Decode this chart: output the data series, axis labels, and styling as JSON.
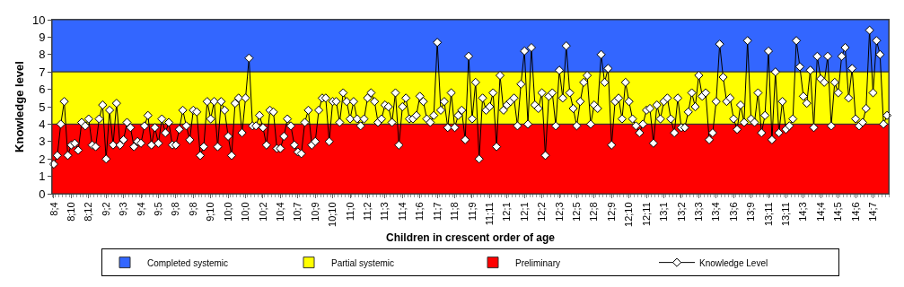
{
  "chart_data": {
    "type": "line",
    "xlabel": "Children in crescent order of age",
    "ylabel": "Knowledge level",
    "categories": [
      "8;4",
      null,
      null,
      null,
      null,
      "8;10",
      null,
      null,
      null,
      null,
      "8;12",
      null,
      null,
      null,
      null,
      "9;2",
      null,
      null,
      null,
      null,
      "9;3",
      null,
      null,
      null,
      null,
      "9;4",
      null,
      null,
      null,
      null,
      "9;5",
      null,
      null,
      null,
      null,
      "9;8",
      null,
      null,
      null,
      null,
      "9;8",
      null,
      null,
      null,
      null,
      "9;10",
      null,
      null,
      null,
      null,
      "10;0",
      null,
      null,
      null,
      null,
      "10;0",
      null,
      null,
      null,
      null,
      "10;2",
      null,
      null,
      null,
      null,
      "10;4",
      null,
      null,
      null,
      null,
      "10;7",
      null,
      null,
      null,
      null,
      "10;9",
      null,
      null,
      null,
      null,
      "10;10",
      null,
      null,
      null,
      null,
      "11;0",
      null,
      null,
      null,
      null,
      "11;2",
      null,
      null,
      null,
      null,
      "11;3",
      null,
      null,
      null,
      null,
      "11;4",
      null,
      null,
      null,
      null,
      "11;6",
      null,
      null,
      null,
      null,
      "11;7",
      null,
      null,
      null,
      null,
      "11;8",
      null,
      null,
      null,
      null,
      "11;9",
      null,
      null,
      null,
      null,
      "11;11",
      null,
      null,
      null,
      null,
      "12;1",
      null,
      null,
      null,
      null,
      "12;1",
      null,
      null,
      null,
      null,
      "12;2",
      null,
      null,
      null,
      null,
      "12;3",
      null,
      null,
      null,
      null,
      "12;5",
      null,
      null,
      null,
      null,
      "12;8",
      null,
      null,
      null,
      null,
      "12;9",
      null,
      null,
      null,
      null,
      "12;10",
      null,
      null,
      null,
      null,
      "12;11",
      null,
      null,
      null,
      null,
      "13;1",
      null,
      null,
      null,
      null,
      "13;2",
      null,
      null,
      null,
      null,
      "13;3",
      null,
      null,
      null,
      null,
      "13;4",
      null,
      null,
      null,
      null,
      "13;6",
      null,
      null,
      null,
      null,
      "13;9",
      null,
      null,
      null,
      null,
      "13;11",
      null,
      null,
      null,
      null,
      "13;11",
      null,
      null,
      null,
      null,
      "14;3",
      null,
      null,
      null,
      null,
      "14;4",
      null,
      null,
      null,
      null,
      "14;5",
      null,
      null,
      null,
      null,
      "14;6",
      null,
      null,
      null,
      null,
      "14;7",
      null,
      null,
      null,
      null
    ],
    "series": [
      {
        "name": "Knowledge Level",
        "color": "#000000",
        "values": [
          1.7,
          2.2,
          4.0,
          5.3,
          2.2,
          2.8,
          2.9,
          2.5,
          4.1,
          3.9,
          4.3,
          2.8,
          2.7,
          4.3,
          5.1,
          2.0,
          4.8,
          2.8,
          5.2,
          2.8,
          3.1,
          4.1,
          3.8,
          2.7,
          3.0,
          2.9,
          3.9,
          4.5,
          2.8,
          3.8,
          2.9,
          4.3,
          3.5,
          4.1,
          2.8,
          2.8,
          3.7,
          4.8,
          3.9,
          3.1,
          4.8,
          4.7,
          2.2,
          2.7,
          5.3,
          4.3,
          5.3,
          2.7,
          5.3,
          4.8,
          3.3,
          2.2,
          5.2,
          5.5,
          3.5,
          5.5,
          7.8,
          3.9,
          3.9,
          4.5,
          3.8,
          2.8,
          4.8,
          4.7,
          2.6,
          2.6,
          3.3,
          4.3,
          3.9,
          2.8,
          2.4,
          2.3,
          4.1,
          4.8,
          2.8,
          3.0,
          4.8,
          5.5,
          5.5,
          3.0,
          5.3,
          5.3,
          4.1,
          5.8,
          5.3,
          4.3,
          5.3,
          4.3,
          3.9,
          4.3,
          5.5,
          5.8,
          5.3,
          4.1,
          4.3,
          5.1,
          5.0,
          4.1,
          5.8,
          2.8,
          5.0,
          5.5,
          4.3,
          4.3,
          4.5,
          5.6,
          5.3,
          4.3,
          4.1,
          4.5,
          8.7,
          4.8,
          5.3,
          3.8,
          5.8,
          3.8,
          4.5,
          4.8,
          3.1,
          7.9,
          4.3,
          6.4,
          2.0,
          5.5,
          4.8,
          5.0,
          5.8,
          2.7,
          6.8,
          4.8,
          5.1,
          5.3,
          5.5,
          3.9,
          6.3,
          8.2,
          4.0,
          8.4,
          5.1,
          4.9,
          5.8,
          2.2,
          5.6,
          5.8,
          3.9,
          7.1,
          5.5,
          8.5,
          5.8,
          4.9,
          3.9,
          5.3,
          6.4,
          6.8,
          4.0,
          5.1,
          4.9,
          8.0,
          6.4,
          7.2,
          2.8,
          5.3,
          5.5,
          4.3,
          6.4,
          5.3,
          4.3,
          3.9,
          3.5,
          4.0,
          4.8,
          4.9,
          2.9,
          5.1,
          4.3,
          5.3,
          5.5,
          4.3,
          3.5,
          5.5,
          3.8,
          3.8,
          4.7,
          5.8,
          5.0,
          6.8,
          5.6,
          5.8,
          3.1,
          3.5,
          5.3,
          8.6,
          6.7,
          5.3,
          5.5,
          4.3,
          3.7,
          5.1,
          4.1,
          8.8,
          4.3,
          4.1,
          5.8,
          3.5,
          4.5,
          8.2,
          3.1,
          7.0,
          3.5,
          5.3,
          3.7,
          3.9,
          4.3,
          8.8,
          7.3,
          5.6,
          5.2,
          7.1,
          3.8,
          7.9,
          6.6,
          6.4,
          7.9,
          3.9,
          6.4,
          5.8,
          7.9,
          8.4,
          5.5,
          7.2,
          4.3,
          3.9,
          4.1,
          4.9,
          9.4,
          5.8,
          8.8,
          8.0,
          4.0,
          4.5
        ]
      }
    ],
    "bands": [
      {
        "axis": "y",
        "from": 7,
        "to": 10,
        "label": "Completed systemic",
        "color": "#3366ff"
      },
      {
        "axis": "y",
        "from": 4,
        "to": 7,
        "label": "Partial systemic",
        "color": "#ffff00"
      },
      {
        "axis": "y",
        "from": 0,
        "to": 4,
        "label": "Preliminary",
        "color": "#ff0000"
      }
    ],
    "ylim": [
      0,
      10
    ],
    "yticks": [
      0,
      1,
      2,
      3,
      4,
      5,
      6,
      7,
      8,
      9,
      10
    ],
    "marker": "diamond",
    "legend": "bottom"
  }
}
